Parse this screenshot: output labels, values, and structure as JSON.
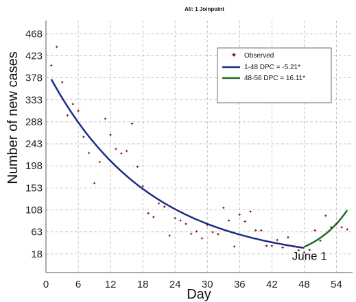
{
  "chart_data": {
    "type": "scatter",
    "title": "All: 1 Joinpoint",
    "xlabel": "Day",
    "ylabel": "Number of new cases",
    "xlim": [
      0,
      57
    ],
    "ylim": [
      -20,
      495
    ],
    "xticks": [
      0,
      6,
      12,
      18,
      24,
      30,
      36,
      42,
      48,
      54
    ],
    "yticks": [
      18,
      63,
      108,
      153,
      198,
      243,
      288,
      333,
      378,
      423,
      468
    ],
    "grid": true,
    "legend_position": "top-right",
    "observed": {
      "name": "Observed",
      "color": "#7a1020",
      "x": [
        1,
        2,
        3,
        4,
        5,
        6,
        7,
        8,
        9,
        10,
        11,
        12,
        13,
        14,
        15,
        16,
        17,
        18,
        19,
        20,
        21,
        22,
        23,
        24,
        25,
        26,
        27,
        28,
        29,
        30,
        31,
        32,
        33,
        34,
        35,
        36,
        37,
        38,
        39,
        40,
        41,
        42,
        43,
        44,
        45,
        46,
        47,
        48,
        49,
        50,
        51,
        52,
        53,
        54,
        55,
        56
      ],
      "y": [
        404,
        442,
        370,
        302,
        325,
        311,
        258,
        225,
        163,
        207,
        295,
        262,
        233,
        224,
        229,
        285,
        197,
        157,
        102,
        94,
        122,
        115,
        56,
        92,
        87,
        80,
        60,
        65,
        51,
        78,
        63,
        59,
        113,
        87,
        34,
        99,
        85,
        105,
        67,
        67,
        35,
        35,
        47,
        32,
        53,
        34,
        26,
        22,
        27,
        67,
        46,
        97,
        73,
        80,
        73,
        69
      ]
    },
    "series": [
      {
        "name": "1-48 DPC  = -5.21*",
        "color": "#1c2c84",
        "segment": [
          1,
          48
        ],
        "start_value": 375,
        "rate_percent": -5.21
      },
      {
        "name": "48-56 DPC  = 16.11*",
        "color": "#1f6b22",
        "segment": [
          48,
          56
        ],
        "start_value": 32.5,
        "rate_percent": 16.11
      }
    ],
    "annotations": [
      {
        "text": "June 1",
        "x": 49,
        "y": 14
      }
    ]
  }
}
